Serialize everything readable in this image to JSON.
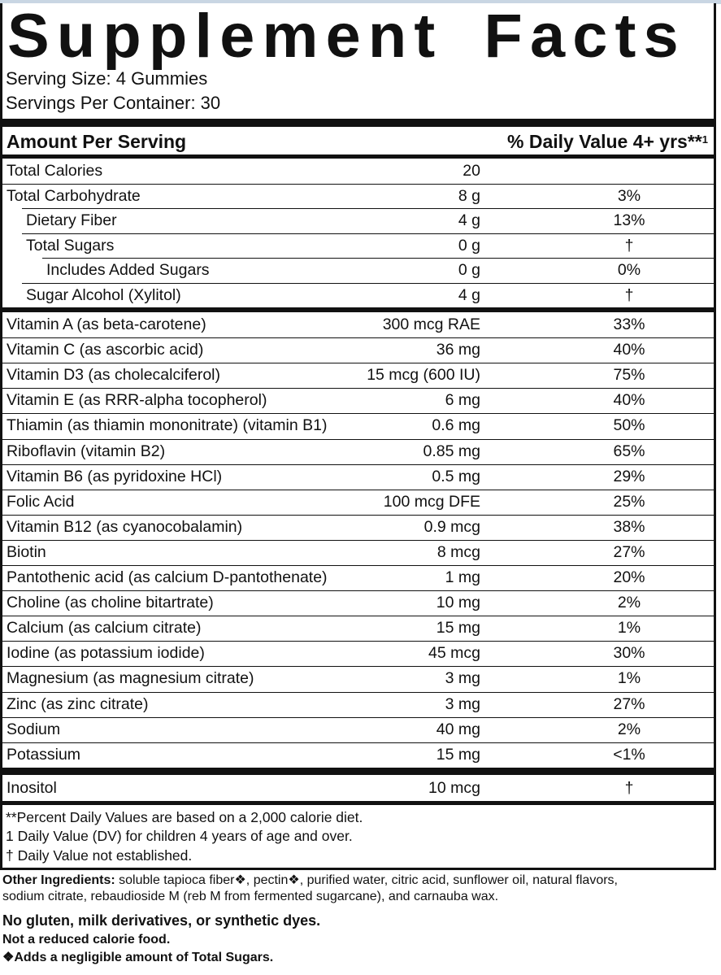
{
  "title_left": "Supplement",
  "title_right": "Facts",
  "serving_size": "Serving Size: 4 Gummies",
  "servings_per_container": "Servings Per Container: 30",
  "header_amount": "Amount Per Serving",
  "header_dv": "% Daily Value 4+ yrs**",
  "header_dv_sup": "1",
  "group1": [
    {
      "name": "Total Calories",
      "amount": "20",
      "dv": "",
      "indent": 0
    },
    {
      "name": "Total Carbohydrate",
      "amount": "8 g",
      "dv": "3%",
      "indent": 0
    },
    {
      "name": "Dietary Fiber",
      "amount": "4 g",
      "dv": "13%",
      "indent": 1
    },
    {
      "name": "Total Sugars",
      "amount": "0 g",
      "dv": "†",
      "indent": 1
    },
    {
      "name": "Includes Added Sugars",
      "amount": "0 g",
      "dv": "0%",
      "indent": 2
    },
    {
      "name": "Sugar Alcohol (Xylitol)",
      "amount": "4 g",
      "dv": "†",
      "indent": 1
    }
  ],
  "group2": [
    {
      "name": "Vitamin A (as beta-carotene)",
      "amount": "300 mcg RAE",
      "dv": "33%"
    },
    {
      "name": "Vitamin C (as ascorbic acid)",
      "amount": "36 mg",
      "dv": "40%"
    },
    {
      "name": "Vitamin D3 (as cholecalciferol)",
      "amount": "15 mcg (600 IU)",
      "dv": "75%"
    },
    {
      "name": "Vitamin E (as RRR-alpha tocopherol)",
      "amount": "6 mg",
      "dv": "40%"
    },
    {
      "name": "Thiamin (as thiamin mononitrate) (vitamin B1)",
      "amount": "0.6 mg",
      "dv": "50%"
    },
    {
      "name": "Riboflavin (vitamin B2)",
      "amount": "0.85 mg",
      "dv": "65%"
    },
    {
      "name": "Vitamin B6 (as pyridoxine HCl)",
      "amount": "0.5 mg",
      "dv": "29%"
    },
    {
      "name": "Folic Acid",
      "amount": "100 mcg DFE",
      "dv": "25%"
    },
    {
      "name": "Vitamin B12 (as cyanocobalamin)",
      "amount": "0.9 mcg",
      "dv": "38%"
    },
    {
      "name": "Biotin",
      "amount": "8 mcg",
      "dv": "27%"
    },
    {
      "name": "Pantothenic acid (as calcium D-pantothenate)",
      "amount": "1 mg",
      "dv": "20%"
    },
    {
      "name": "Choline (as choline bitartrate)",
      "amount": "10 mg",
      "dv": "2%"
    },
    {
      "name": "Calcium (as calcium citrate)",
      "amount": "15 mg",
      "dv": "1%"
    },
    {
      "name": "Iodine (as potassium iodide)",
      "amount": "45 mcg",
      "dv": "30%"
    },
    {
      "name": "Magnesium (as magnesium citrate)",
      "amount": "3 mg",
      "dv": "1%"
    },
    {
      "name": "Zinc (as zinc citrate)",
      "amount": "3 mg",
      "dv": "27%"
    },
    {
      "name": "Sodium",
      "amount": "40 mg",
      "dv": "2%"
    },
    {
      "name": "Potassium",
      "amount": "15 mg",
      "dv": "<1%"
    }
  ],
  "group3": [
    {
      "name": "Inositol",
      "amount": "10 mcg",
      "dv": "†"
    }
  ],
  "footnotes": [
    "**Percent Daily Values are based on a 2,000 calorie diet.",
    "1 Daily Value (DV) for children 4 years of age and over.",
    "† Daily Value not established."
  ],
  "other_ingredients_label": "Other Ingredients:",
  "other_ingredients_line1": "soluble tapioca fiber❖, pectin❖, purified water, citric acid, sunflower oil, natural flavors,",
  "other_ingredients_line2": "sodium citrate, rebaudioside M (reb M from fermented sugarcane), and carnauba wax.",
  "no_gluten": "No gluten, milk derivatives, or synthetic dyes.",
  "not_reduced": "Not a reduced calorie food.",
  "adds_note": "❖Adds a negligible amount of Total Sugars."
}
